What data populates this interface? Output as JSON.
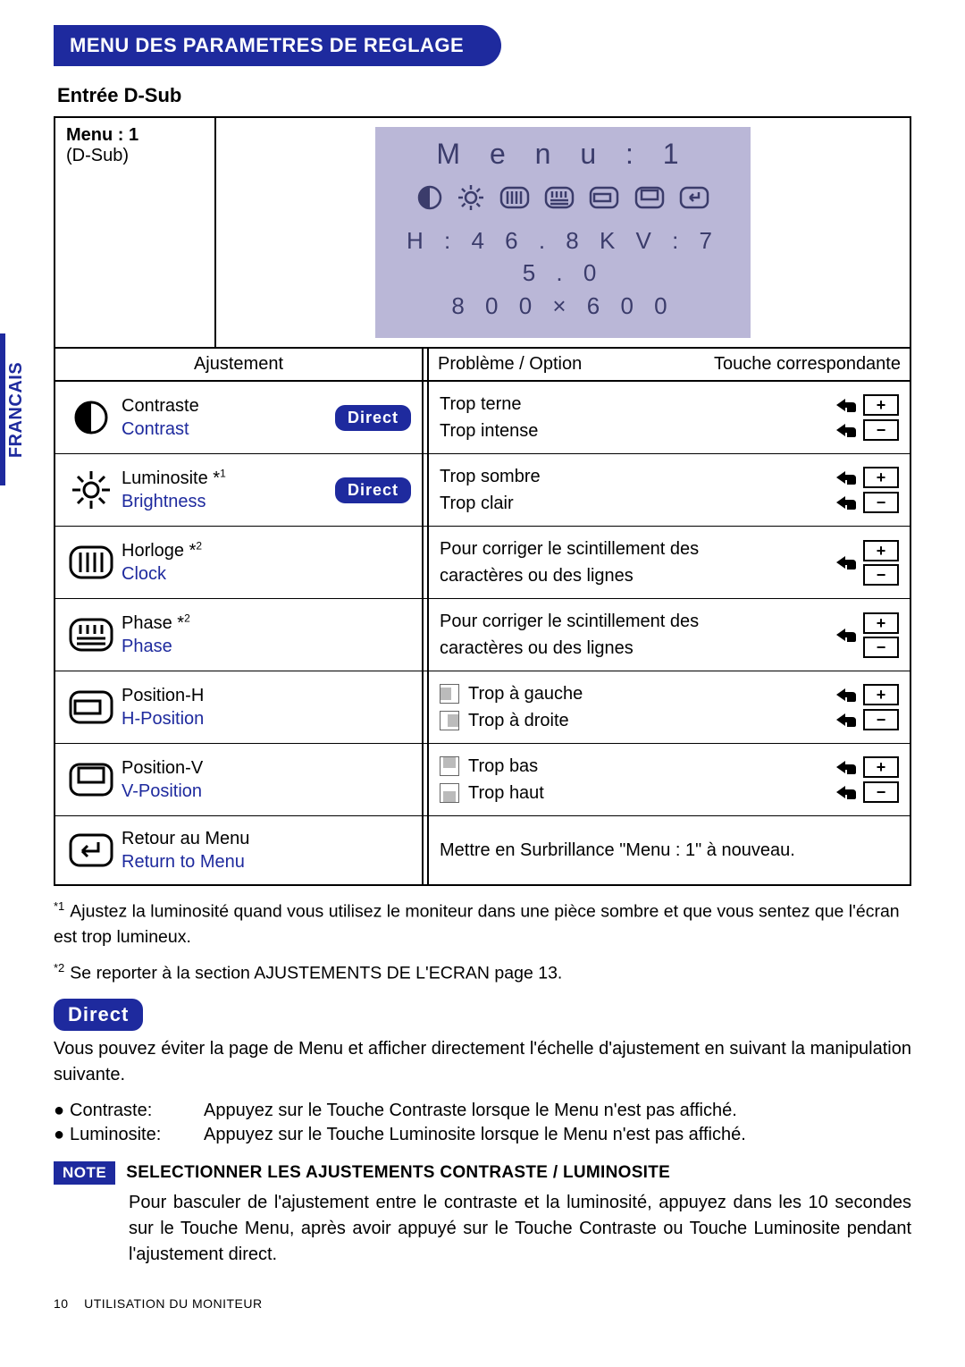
{
  "colors": {
    "brand": "#1e2a9e",
    "osd_bg": "#bab7d7",
    "osd_text": "#3b3c6b"
  },
  "sidebar_text": "FRANCAIS",
  "header": "MENU DES PARAMETRES DE REGLAGE",
  "subhead": "Entrée D-Sub",
  "topleft": {
    "menu_label": "Menu : 1",
    "input": "(D-Sub)"
  },
  "osd": {
    "title": "M e n u : 1",
    "line1": "H : 4 6 . 8 K   V : 7 5 . 0",
    "line2": "8 0 0   ×   6 0 0"
  },
  "columns": {
    "adjust": "Ajustement",
    "problem": "Problème / Option",
    "key": "Touche correspondante"
  },
  "direct_label": "Direct",
  "plus": "+",
  "minus": "−",
  "rows": [
    {
      "fr": "Contraste",
      "en": "Contrast",
      "direct": true,
      "problems": [
        [
          "",
          "Trop terne"
        ],
        [
          "",
          "Trop intense"
        ]
      ],
      "keys": [
        "both"
      ]
    },
    {
      "fr": "Luminosite *1",
      "en": "Brightness",
      "direct": true,
      "problems": [
        [
          "",
          "Trop sombre"
        ],
        [
          "",
          "Trop clair"
        ]
      ],
      "keys": [
        "both"
      ]
    },
    {
      "fr": "Horloge *2",
      "en": "Clock",
      "direct": false,
      "problems": [
        [
          "",
          "Pour corriger le scintillement des"
        ],
        [
          "",
          "caractères ou des lignes"
        ]
      ],
      "keys": [
        "stack"
      ]
    },
    {
      "fr": "Phase *2",
      "en": "Phase",
      "direct": false,
      "problems": [
        [
          "",
          "Pour corriger le scintillement des"
        ],
        [
          "",
          "caractères ou des lignes"
        ]
      ],
      "keys": [
        "stack"
      ]
    },
    {
      "fr": "Position-H",
      "en": "H-Position",
      "direct": false,
      "problems": [
        [
          "hleft",
          "Trop à gauche"
        ],
        [
          "hright",
          "Trop à droite"
        ]
      ],
      "keys": [
        "both"
      ]
    },
    {
      "fr": "Position-V",
      "en": "V-Position",
      "direct": false,
      "problems": [
        [
          "vtop",
          "Trop bas"
        ],
        [
          "vbot",
          "Trop haut"
        ]
      ],
      "keys": [
        "both"
      ]
    },
    {
      "fr": "Retour au Menu",
      "en": "Return to Menu",
      "direct": false,
      "problems": [
        [
          "",
          "Mettre en Surbrillance \"Menu : 1\" à nouveau."
        ]
      ],
      "keys": []
    }
  ],
  "footnotes": {
    "f1_mark": "*1",
    "f1": "Ajustez la luminosité quand vous utilisez le moniteur dans une pièce sombre et que vous sentez que l'écran est trop lumineux.",
    "f2_mark": "*2",
    "f2": "Se reporter à la section AJUSTEMENTS DE L'ECRAN page 13."
  },
  "direct_section": {
    "intro": "Vous pouvez éviter la page de Menu et afficher directement l'échelle d'ajustement en suivant la manipulation suivante.",
    "bullets": [
      {
        "label": "Contraste:",
        "text": "Appuyez sur le Touche Contraste lorsque le Menu n'est pas affiché."
      },
      {
        "label": "Luminosite:",
        "text": "Appuyez sur le Touche Luminosite lorsque le Menu n'est pas affiché."
      }
    ]
  },
  "note": {
    "badge": "NOTE",
    "title": "SELECTIONNER LES AJUSTEMENTS CONTRASTE / LUMINOSITE",
    "body": "Pour basculer de l'ajustement entre le contraste et la luminosité, appuyez dans les 10 secondes sur le Touche Menu, après avoir appuyé sur le Touche Contraste ou Touche Luminosite pendant l'ajustement direct."
  },
  "pagefoot": {
    "num": "10",
    "text": "UTILISATION DU MONITEUR"
  }
}
